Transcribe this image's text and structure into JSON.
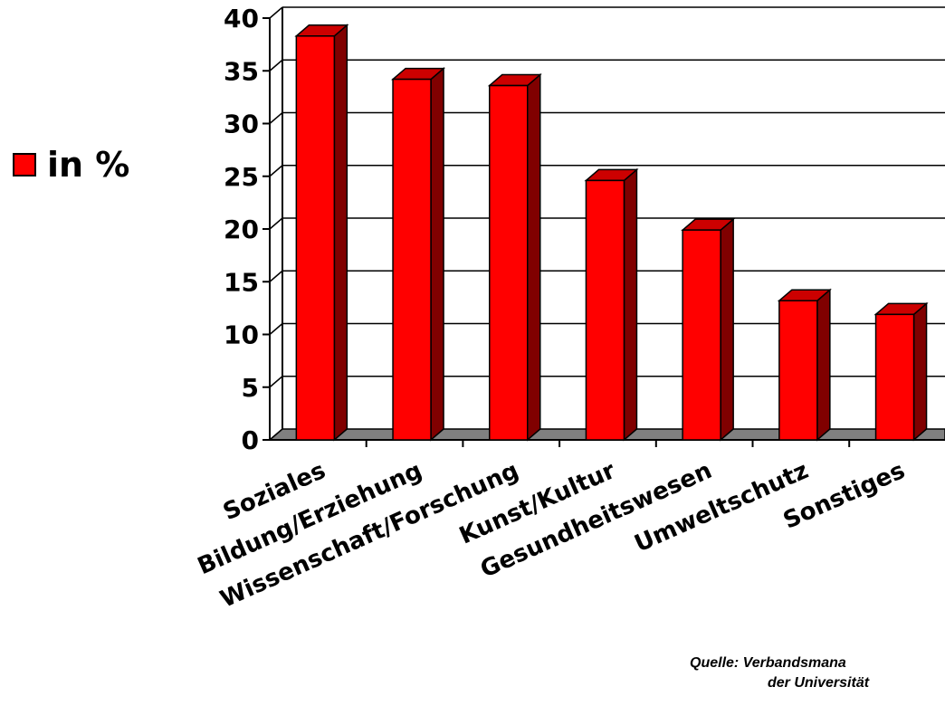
{
  "chart_data": {
    "type": "bar",
    "style": "3d",
    "categories": [
      "Soziales",
      "Bildung/Erziehung",
      "Wissenschaft/Forschung",
      "Kunst/Kultur",
      "Gesundheitswesen",
      "Umweltschutz",
      "Sonstiges"
    ],
    "series": [
      {
        "name": "in %",
        "values": [
          38.3,
          34.2,
          33.6,
          24.6,
          19.9,
          13.2,
          11.9
        ]
      }
    ],
    "ylim": [
      0,
      40
    ],
    "yticks": [
      0,
      5,
      10,
      15,
      20,
      25,
      30,
      35,
      40
    ],
    "grid": true,
    "legend_position": "left",
    "colors": {
      "bar_front": "#ff0000",
      "bar_side": "#800000",
      "bar_top": "#cc0000",
      "floor": "#808080"
    }
  },
  "source": {
    "line1": "Quelle: Verbandsmana",
    "line2": "der Universität"
  }
}
